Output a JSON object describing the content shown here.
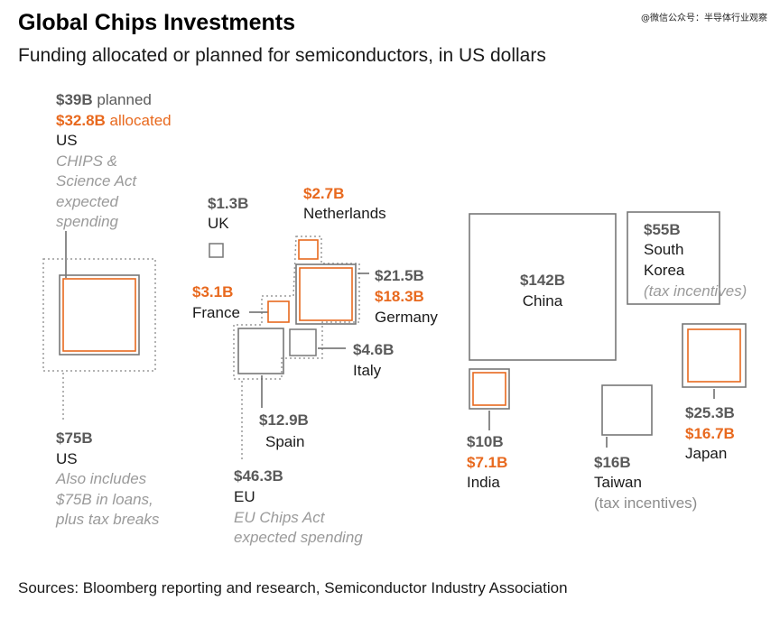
{
  "header": {
    "title": "Global Chips Investments",
    "subtitle": "Funding allocated or planned for semiconductors, in US dollars",
    "watermark": "@微信公众号：半导体行业观察"
  },
  "footer": {
    "sources": "Sources: Bloomberg reporting and research, Semiconductor Industry Association"
  },
  "colors": {
    "planned": "#777777",
    "allocated": "#e8691e",
    "umbrella": "#9a9a9a"
  },
  "chart_data": {
    "type": "proportional-area squares",
    "units": "US dollars (billions)",
    "entries": [
      {
        "name": "US",
        "planned": "$39B",
        "planned_suffix": " planned",
        "allocated": "$32.8B",
        "allocated_suffix": " allocated",
        "note": [
          "CHIPS &",
          "Science Act",
          "expected",
          "spending"
        ]
      },
      {
        "name": "US",
        "total": "$75B",
        "note": [
          "Also includes",
          "$75B in loans,",
          "plus tax breaks"
        ]
      },
      {
        "name": "UK",
        "planned": "$1.3B"
      },
      {
        "name": "Netherlands",
        "allocated": "$2.7B"
      },
      {
        "name": "France",
        "allocated": "$3.1B"
      },
      {
        "name": "Germany",
        "planned": "$21.5B",
        "allocated": "$18.3B"
      },
      {
        "name": "Italy",
        "planned": "$4.6B"
      },
      {
        "name": "Spain",
        "planned": "$12.9B"
      },
      {
        "name": "EU",
        "total": "$46.3B",
        "note": [
          "EU Chips Act",
          "expected spending"
        ]
      },
      {
        "name": "China",
        "planned": "$142B"
      },
      {
        "name": "South",
        "name2": "Korea",
        "planned": "$55B",
        "note": [
          "(tax incentives)"
        ]
      },
      {
        "name": "India",
        "planned": "$10B",
        "allocated": "$7.1B"
      },
      {
        "name": "Taiwan",
        "planned": "$16B",
        "note": [
          "(tax incentives)"
        ]
      },
      {
        "name": "Japan",
        "planned": "$25.3B",
        "allocated": "$16.7B"
      }
    ]
  }
}
